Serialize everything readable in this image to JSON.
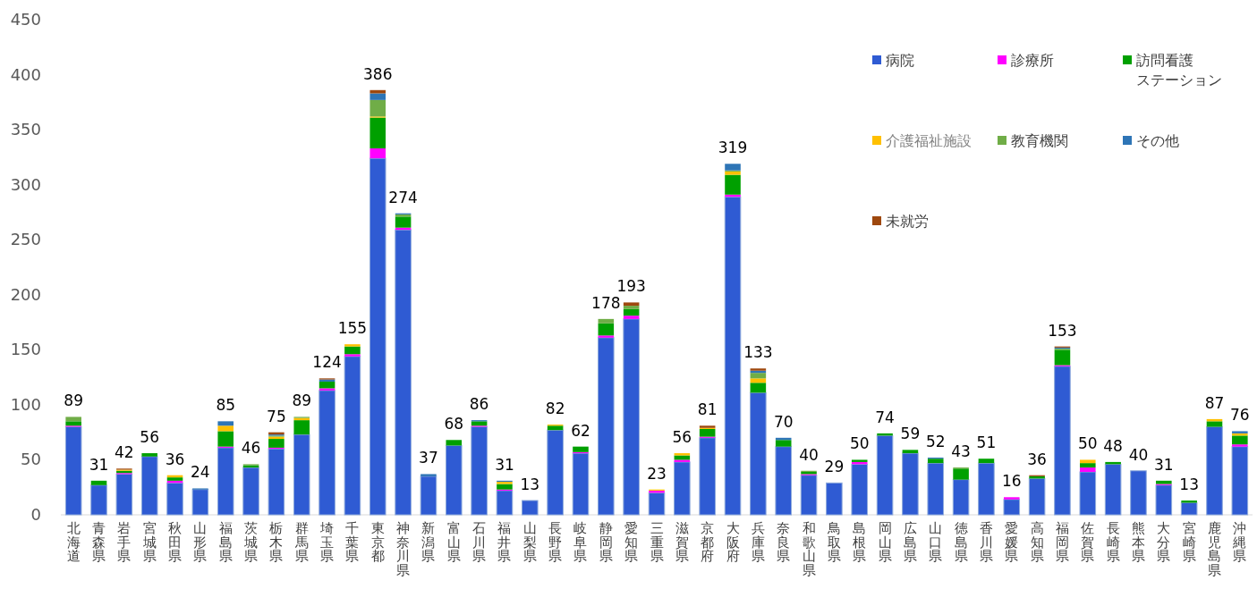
{
  "chart_data": {
    "type": "bar",
    "stacked": true,
    "ylim": [
      0,
      450
    ],
    "yticks": [
      0,
      50,
      100,
      150,
      200,
      250,
      300,
      350,
      400,
      450
    ],
    "grid": false,
    "legend": "top right",
    "categories": [
      "北海道",
      "青森県",
      "岩手県",
      "宮城県",
      "秋田県",
      "山形県",
      "福島県",
      "茨城県",
      "栃木県",
      "群馬県",
      "埼玉県",
      "千葉県",
      "東京都",
      "神奈川県",
      "新潟県",
      "富山県",
      "石川県",
      "福井県",
      "山梨県",
      "長野県",
      "岐阜県",
      "静岡県",
      "愛知県",
      "三重県",
      "滋賀県",
      "京都府",
      "大阪府",
      "兵庫県",
      "奈良県",
      "和歌山県",
      "鳥取県",
      "島根県",
      "岡山県",
      "広島県",
      "山口県",
      "徳島県",
      "香川県",
      "愛媛県",
      "高知県",
      "福岡県",
      "佐賀県",
      "長崎県",
      "熊本県",
      "大分県",
      "宮崎県",
      "鹿児島県",
      "沖縄県"
    ],
    "series": [
      {
        "name": "病院",
        "color": "#2f5bd3",
        "values": [
          80,
          27,
          37,
          53,
          29,
          23,
          61,
          43,
          60,
          73,
          113,
          144,
          324,
          259,
          35,
          63,
          80,
          22,
          13,
          77,
          56,
          161,
          178,
          20,
          48,
          70,
          289,
          111,
          62,
          36,
          29,
          46,
          72,
          56,
          47,
          32,
          47,
          14,
          33,
          135,
          39,
          46,
          40,
          27,
          11,
          80,
          62
        ]
      },
      {
        "name": "診療所",
        "color": "#ff00ff",
        "values": [
          1,
          0,
          1,
          0,
          2,
          0,
          1,
          0,
          1,
          0,
          2,
          2,
          9,
          2,
          0,
          0,
          1,
          1,
          0,
          0,
          1,
          2,
          3,
          2,
          2,
          1,
          2,
          0,
          0,
          1,
          0,
          2,
          0,
          0,
          0,
          0,
          0,
          2,
          0,
          1,
          4,
          0,
          0,
          1,
          0,
          0,
          2
        ]
      },
      {
        "name": "訪問看護ステーション",
        "color": "#00a000",
        "values": [
          4,
          4,
          2,
          3,
          3,
          0,
          14,
          2,
          8,
          13,
          6,
          7,
          28,
          10,
          0,
          5,
          4,
          5,
          0,
          4,
          5,
          11,
          6,
          0,
          4,
          7,
          18,
          9,
          6,
          2,
          0,
          2,
          2,
          3,
          4,
          10,
          4,
          0,
          2,
          14,
          4,
          2,
          0,
          3,
          2,
          5,
          8
        ]
      },
      {
        "name": "介護福祉施設",
        "color": "#ffc000",
        "values": [
          0,
          0,
          1,
          0,
          2,
          0,
          5,
          0,
          2,
          2,
          0,
          2,
          1,
          0,
          0,
          0,
          0,
          2,
          0,
          1,
          0,
          0,
          0,
          1,
          2,
          1,
          3,
          4,
          0,
          0,
          0,
          0,
          0,
          0,
          0,
          0,
          0,
          0,
          0,
          0,
          3,
          0,
          0,
          0,
          0,
          2,
          2
        ]
      },
      {
        "name": "教育機関",
        "color": "#70ad47",
        "values": [
          4,
          0,
          0,
          0,
          0,
          0,
          0,
          1,
          1,
          1,
          0,
          0,
          15,
          2,
          0,
          0,
          0,
          0,
          0,
          0,
          0,
          4,
          3,
          0,
          0,
          0,
          1,
          5,
          0,
          1,
          0,
          0,
          0,
          0,
          0,
          1,
          0,
          0,
          0,
          1,
          0,
          0,
          0,
          0,
          0,
          0,
          0
        ]
      },
      {
        "name": "その他",
        "color": "#2e75b6",
        "values": [
          0,
          0,
          0,
          0,
          0,
          1,
          4,
          0,
          1,
          0,
          2,
          0,
          6,
          1,
          2,
          0,
          1,
          1,
          0,
          0,
          0,
          0,
          0,
          0,
          0,
          0,
          6,
          2,
          2,
          0,
          0,
          0,
          0,
          0,
          1,
          0,
          0,
          0,
          0,
          1,
          0,
          0,
          0,
          0,
          0,
          0,
          2
        ]
      },
      {
        "name": "未就労",
        "color": "#9e480e",
        "values": [
          0,
          0,
          1,
          0,
          0,
          0,
          0,
          0,
          2,
          0,
          1,
          0,
          3,
          0,
          0,
          0,
          0,
          0,
          0,
          0,
          0,
          0,
          3,
          0,
          0,
          2,
          0,
          2,
          0,
          0,
          0,
          0,
          0,
          0,
          0,
          0,
          0,
          0,
          1,
          1,
          0,
          0,
          0,
          0,
          0,
          0,
          0
        ]
      }
    ],
    "totals": [
      "89",
      "31",
      "42",
      "56",
      "36",
      "24",
      "85",
      "46",
      "75",
      "89",
      "124",
      "155",
      "386",
      "274",
      "37",
      "68",
      "86",
      "31",
      "13",
      "82",
      "62",
      "178",
      "193",
      "23",
      "56",
      "81",
      "319",
      "133",
      "70",
      "40",
      "29",
      "50",
      "74",
      "59",
      "52",
      "43",
      "51",
      "16",
      "36",
      "153",
      "50",
      "48",
      "40",
      "31",
      "13",
      "87",
      "76"
    ]
  }
}
